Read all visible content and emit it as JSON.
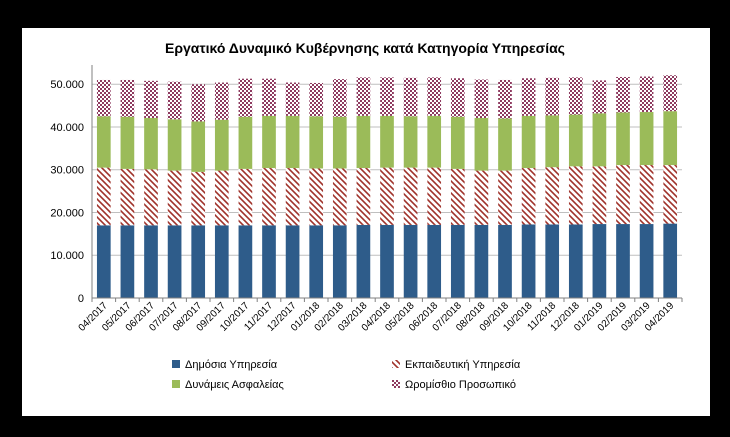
{
  "chart_data": {
    "type": "bar",
    "stacked": true,
    "title": "Εργατικό Δυναμικό Κυβέρνησης κατά Κατηγορία Υπηρεσίας",
    "xlabel": "",
    "ylabel": "",
    "ylim": [
      0,
      50000
    ],
    "yticks": [
      "0",
      "10.000",
      "20.000",
      "30.000",
      "40.000",
      "50.000"
    ],
    "ytick_values": [
      0,
      10000,
      20000,
      30000,
      40000,
      50000
    ],
    "grid": true,
    "legend_position": "bottom",
    "categories": [
      "04/2017",
      "05/2017",
      "06/2017",
      "07/2017",
      "08/2017",
      "09/2017",
      "10/2017",
      "11/2017",
      "12/2017",
      "01/2018",
      "02/2018",
      "03/2018",
      "04/2018",
      "05/2018",
      "06/2018",
      "07/2018",
      "08/2018",
      "09/2018",
      "10/2018",
      "11/2018",
      "12/2018",
      "01/2019",
      "02/2019",
      "03/2019",
      "04/2019"
    ],
    "series": [
      {
        "name": "Δημόσια Υπηρεσία",
        "color": "#2E5C8A",
        "pattern": "solid",
        "values": [
          17000,
          17000,
          17000,
          17000,
          17000,
          17000,
          17000,
          17000,
          17000,
          17000,
          17000,
          17100,
          17100,
          17100,
          17100,
          17100,
          17100,
          17100,
          17200,
          17200,
          17200,
          17300,
          17300,
          17300,
          17400
        ]
      },
      {
        "name": "Εκπαιδευτική Υπηρεσία",
        "color": "#A0322A",
        "pattern": "diagonal",
        "values": [
          13500,
          13200,
          13100,
          12800,
          12500,
          12800,
          13200,
          13400,
          13400,
          13300,
          13300,
          13300,
          13400,
          13400,
          13400,
          13100,
          12700,
          12700,
          13200,
          13400,
          13600,
          13500,
          13800,
          13800,
          13700
        ]
      },
      {
        "name": "Δυνάμεις Ασφαλείας",
        "color": "#9BBB59",
        "pattern": "solid",
        "values": [
          12000,
          12200,
          12000,
          12000,
          11800,
          11900,
          12200,
          12200,
          12200,
          12200,
          12100,
          12200,
          12100,
          12000,
          12100,
          12200,
          12300,
          12200,
          12200,
          12100,
          12100,
          12400,
          12300,
          12400,
          12600
        ]
      },
      {
        "name": "Ωρομίσθιο Προσωπικό",
        "color": "#8E3A5F",
        "pattern": "checker",
        "values": [
          8500,
          8600,
          8700,
          8800,
          8700,
          8700,
          8900,
          8700,
          7800,
          7800,
          8800,
          9000,
          9000,
          9000,
          9000,
          9000,
          9000,
          9000,
          8800,
          8800,
          8700,
          7700,
          8300,
          8300,
          8400
        ]
      }
    ]
  }
}
